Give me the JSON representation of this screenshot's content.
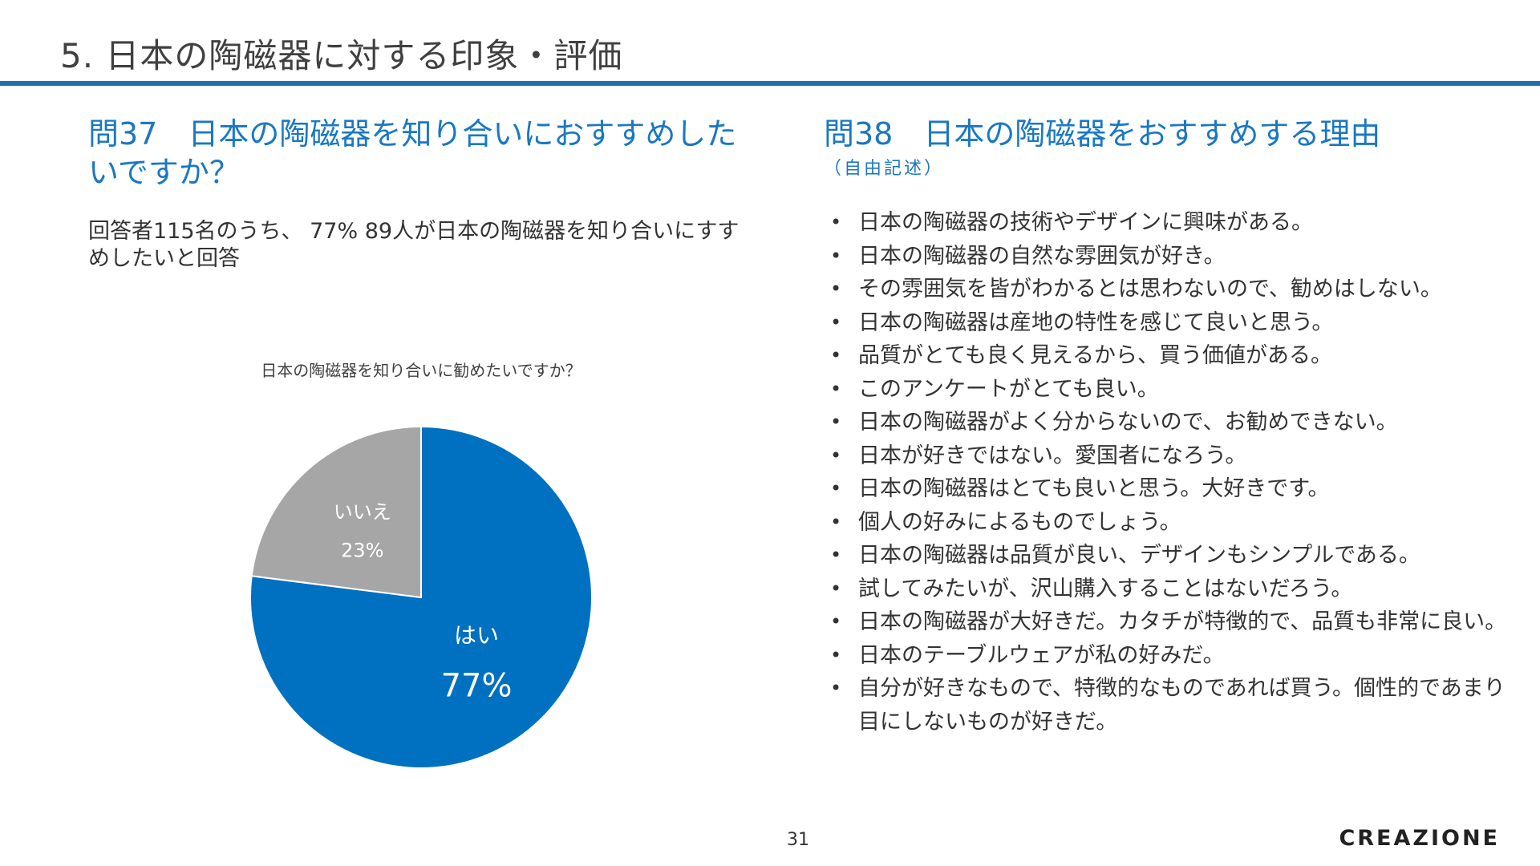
{
  "header": {
    "title": "5. 日本の陶磁器に対する印象・評価",
    "accent_color": "#1f6fb3"
  },
  "q37": {
    "title": "問37　日本の陶磁器を知り合いにおすすめしたいですか？",
    "summary": "回答者115名のうち、 77% 89人が日本の陶磁器を知り合いにすすめしたいと回答"
  },
  "chart_data": {
    "type": "pie",
    "title": "日本の陶磁器を知り合いに勧めたいですか？",
    "slices": [
      {
        "label": "はい",
        "value": 77,
        "display": "77%",
        "color": "#0070c0"
      },
      {
        "label": "いいえ",
        "value": 23,
        "display": "23%",
        "color": "#a6a6a6"
      }
    ]
  },
  "q38": {
    "title": "問38　日本の陶磁器をおすすめする理由",
    "subtitle": "（自由記述）",
    "bullet_glyph": "•",
    "reasons": [
      "日本の陶磁器の技術やデザインに興味がある。",
      "日本の陶磁器の自然な雰囲気が好き。",
      "その雰囲気を皆がわかるとは思わないので、勧めはしない。",
      "日本の陶磁器は産地の特性を感じて良いと思う。",
      "品質がとても良く見えるから、買う価値がある。",
      "このアンケートがとても良い。",
      "日本の陶磁器がよく分からないので、お勧めできない。",
      "日本が好きではない。愛国者になろう。",
      "日本の陶磁器はとても良いと思う。大好きです。",
      "個人の好みによるものでしょう。",
      "日本の陶磁器は品質が良い、デザインもシンプルである。",
      "試してみたいが、沢山購入することはないだろう。",
      "日本の陶磁器が大好きだ。カタチが特徴的で、品質も非常に良い。",
      "日本のテーブルウェアが私の好みだ。",
      "自分が好きなもので、特徴的なものであれば買う。個性的であまり目にしないものが好きだ。"
    ]
  },
  "footer": {
    "page_number": "31",
    "brand": "CREAZIONE"
  }
}
